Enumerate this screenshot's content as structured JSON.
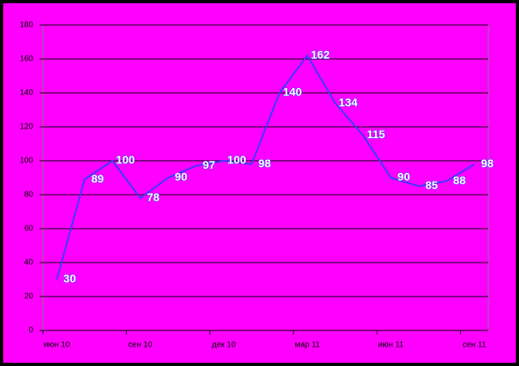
{
  "chart_data": {
    "type": "line",
    "categories": [
      "июн 10",
      null,
      null,
      "сен 10",
      null,
      null,
      "дек 10",
      null,
      null,
      "мар 11",
      null,
      null,
      "июн 11",
      null,
      null,
      "сен 11"
    ],
    "values": [
      30,
      89,
      100,
      78,
      90,
      97,
      100,
      98,
      140,
      162,
      134,
      115,
      90,
      85,
      88,
      98
    ],
    "color": "#3a3aff",
    "ylim": [
      0,
      180
    ],
    "yticks": [
      0,
      20,
      40,
      60,
      80,
      100,
      120,
      140,
      160,
      180
    ],
    "grid": true
  }
}
